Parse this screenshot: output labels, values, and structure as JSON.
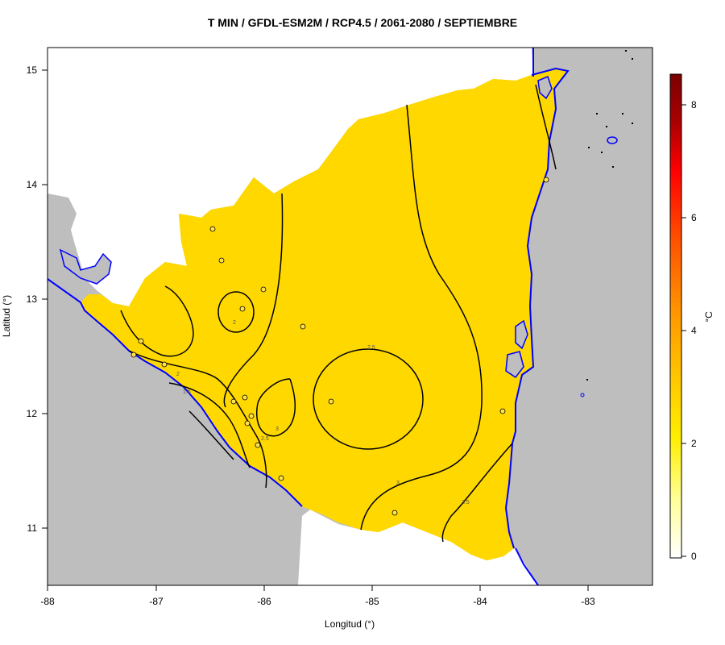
{
  "title": "T MIN / GFDL-ESM2M / RCP4.5 / 2061-2080 / SEPTIEMBRE",
  "axes": {
    "xlabel": "Longitud (°)",
    "ylabel": "Latitud (°)",
    "xticks": [
      "-88",
      "-87",
      "-86",
      "-85",
      "-84",
      "-83"
    ],
    "yticks": [
      "11",
      "12",
      "13",
      "14",
      "15"
    ]
  },
  "colorbar": {
    "unit": "°C",
    "ticks": [
      "0",
      "2",
      "4",
      "6",
      "8"
    ],
    "range": [
      0,
      8.5
    ],
    "colors": [
      "#ffffff",
      "#ffff99",
      "#ffee00",
      "#ffc400",
      "#ff9900",
      "#ff5500",
      "#ff0000",
      "#aa0000",
      "#7a0000"
    ]
  },
  "contour_labels": [
    "2",
    "2",
    "1.5",
    "2.5",
    "3",
    "2.5",
    "3",
    "3.5"
  ],
  "colors": {
    "land_other": "#bebebe",
    "coast": "#0000ff",
    "border": "#000000",
    "map_base": "#ffd400"
  }
}
